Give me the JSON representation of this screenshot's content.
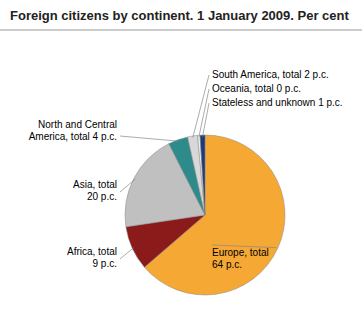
{
  "chart_data": {
    "type": "pie",
    "title": "Foreign citizens by continent. 1 January 2009. Per cent",
    "categories": [
      "Europe, total\n64 p.c.",
      "Africa, total\n9 p.c.",
      "Asia, total\n20 p.c.",
      "North and Central\nAmerica, total 4 p.c.",
      "South America, total 2 p.c.",
      "Oceania, total 0 p.c.",
      "Stateless and unknown 1 p.c."
    ],
    "values": [
      64,
      9,
      20,
      4,
      2,
      0.5,
      1
    ],
    "colors": [
      "#F5A833",
      "#8B1A1A",
      "#C0C0C0",
      "#2E8B8B",
      "#D8D8D8",
      "#F0F0F0",
      "#1C3A7A"
    ]
  }
}
